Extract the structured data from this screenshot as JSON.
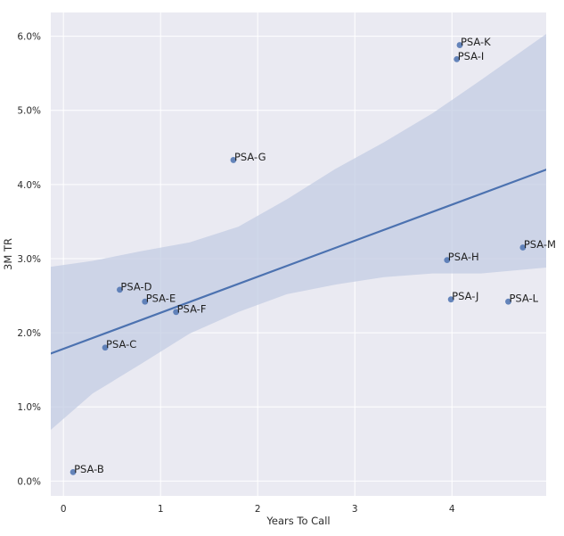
{
  "chart_data": {
    "type": "scatter",
    "xlabel": "Years To Call",
    "ylabel": "3M TR",
    "xlim": [
      -0.13,
      4.97
    ],
    "ylim": [
      -0.2,
      6.32
    ],
    "xticks": [
      {
        "value": 0,
        "label": "0"
      },
      {
        "value": 1,
        "label": "1"
      },
      {
        "value": 2,
        "label": "2"
      },
      {
        "value": 3,
        "label": "3"
      },
      {
        "value": 4,
        "label": "4"
      }
    ],
    "yticks": [
      {
        "value": 0,
        "label": "0.0%"
      },
      {
        "value": 1,
        "label": "1.0%"
      },
      {
        "value": 2,
        "label": "2.0%"
      },
      {
        "value": 3,
        "label": "3.0%"
      },
      {
        "value": 4,
        "label": "4.0%"
      },
      {
        "value": 5,
        "label": "5.0%"
      },
      {
        "value": 6,
        "label": "6.0%"
      }
    ],
    "grid": true,
    "background_color": "#eaeaf2",
    "point_color": "#4c72b0",
    "line_color": "#4c72b0",
    "band_color": "#c3cce3",
    "points": [
      {
        "label": "PSA-B",
        "x": 0.1,
        "y": 0.12
      },
      {
        "label": "PSA-C",
        "x": 0.43,
        "y": 1.8
      },
      {
        "label": "PSA-D",
        "x": 0.58,
        "y": 2.58
      },
      {
        "label": "PSA-E",
        "x": 0.84,
        "y": 2.42
      },
      {
        "label": "PSA-F",
        "x": 1.16,
        "y": 2.28
      },
      {
        "label": "PSA-G",
        "x": 1.75,
        "y": 4.33
      },
      {
        "label": "PSA-H",
        "x": 3.95,
        "y": 2.98
      },
      {
        "label": "PSA-I",
        "x": 4.05,
        "y": 5.69
      },
      {
        "label": "PSA-K",
        "x": 4.08,
        "y": 5.88
      },
      {
        "label": "PSA-J",
        "x": 3.99,
        "y": 2.45
      },
      {
        "label": "PSA-L",
        "x": 4.58,
        "y": 2.42
      },
      {
        "label": "PSA-M",
        "x": 4.73,
        "y": 3.15
      }
    ],
    "regression": {
      "x": [
        -0.13,
        4.97
      ],
      "y": [
        1.72,
        4.2
      ]
    },
    "confidence_band": [
      {
        "x": -0.13,
        "lower": 0.69,
        "upper": 2.89
      },
      {
        "x": 0.3,
        "lower": 1.18,
        "upper": 2.97
      },
      {
        "x": 0.8,
        "lower": 1.58,
        "upper": 3.1
      },
      {
        "x": 1.3,
        "lower": 1.99,
        "upper": 3.22
      },
      {
        "x": 1.8,
        "lower": 2.28,
        "upper": 3.43
      },
      {
        "x": 2.3,
        "lower": 2.52,
        "upper": 3.8
      },
      {
        "x": 2.8,
        "lower": 2.65,
        "upper": 4.21
      },
      {
        "x": 3.3,
        "lower": 2.75,
        "upper": 4.57
      },
      {
        "x": 3.8,
        "lower": 2.8,
        "upper": 4.96
      },
      {
        "x": 4.3,
        "lower": 2.8,
        "upper": 5.41
      },
      {
        "x": 4.97,
        "lower": 2.88,
        "upper": 6.03
      }
    ]
  }
}
